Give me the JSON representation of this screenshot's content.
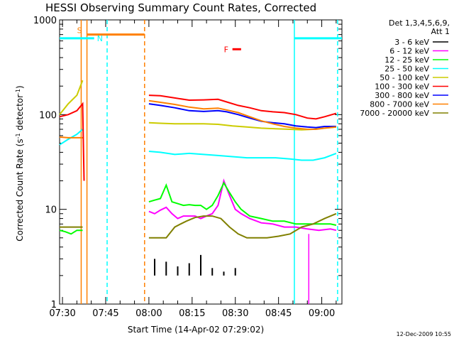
{
  "chart_data": {
    "type": "line",
    "title": "HESSI Observing Summary Count Rates, Corrected",
    "xlabel": "Start Time (14-Apr-02 07:29:02)",
    "ylabel_main": "Corrected Count Rate (s",
    "ylabel_exp1": "-1",
    "ylabel_mid": " detector",
    "ylabel_exp2": "-1",
    "ylabel_end": ")",
    "y_scale": "log",
    "ylim": [
      1,
      1000
    ],
    "xlim_minutes": [
      0,
      98
    ],
    "x_ticks": [
      {
        "m": 1,
        "label": "07:30"
      },
      {
        "m": 16,
        "label": "07:45"
      },
      {
        "m": 31,
        "label": "08:00"
      },
      {
        "m": 46,
        "label": "08:15"
      },
      {
        "m": 61,
        "label": "08:30"
      },
      {
        "m": 76,
        "label": "08:45"
      },
      {
        "m": 91,
        "label": "09:00"
      }
    ],
    "y_ticks": [
      {
        "v": 1,
        "label": "1"
      },
      {
        "v": 10,
        "label": "10"
      },
      {
        "v": 100,
        "label": "100"
      },
      {
        "v": 1000,
        "label": "1000"
      }
    ],
    "timestamp": "12-Dec-2009 10:55",
    "legend_header": [
      "Det 1,3,4,5,6,9,",
      "Att 1"
    ],
    "legend_placement": "right",
    "series": [
      {
        "name": "3 - 6 keV",
        "color": "#000000",
        "values": [
          [
            31,
            2
          ],
          [
            33,
            3
          ],
          [
            35,
            2
          ],
          [
            37,
            2.8
          ],
          [
            39,
            2
          ],
          [
            41,
            2.5
          ],
          [
            43,
            2
          ],
          [
            45,
            2.7
          ],
          [
            47,
            2
          ],
          [
            49,
            3.3
          ],
          [
            51,
            2
          ],
          [
            53,
            2.4
          ],
          [
            55,
            2
          ],
          [
            57,
            2.2
          ],
          [
            59,
            2
          ],
          [
            61,
            2.4
          ],
          [
            63,
            2
          ]
        ]
      },
      {
        "name": "6 - 12 keV",
        "color": "#ff00ff",
        "values": [
          [
            31,
            9.5
          ],
          [
            33,
            9
          ],
          [
            35,
            9.8
          ],
          [
            37,
            10.5
          ],
          [
            39,
            9
          ],
          [
            41,
            8
          ],
          [
            43,
            8.5
          ],
          [
            45,
            8.5
          ],
          [
            47,
            8.5
          ],
          [
            49,
            8
          ],
          [
            51,
            8.5
          ],
          [
            53,
            9
          ],
          [
            55,
            11
          ],
          [
            57,
            20
          ],
          [
            59,
            14
          ],
          [
            61,
            10
          ],
          [
            63,
            9
          ],
          [
            66,
            8
          ],
          [
            70,
            7.2
          ],
          [
            74,
            7
          ],
          [
            78,
            6.5
          ],
          [
            82,
            6.5
          ],
          [
            86,
            6.2
          ],
          [
            90,
            6
          ],
          [
            94,
            6.2
          ],
          [
            96,
            6
          ]
        ]
      },
      {
        "name": "12 - 25 keV",
        "color": "#00ff00",
        "values": [
          [
            0,
            6
          ],
          [
            2,
            5.8
          ],
          [
            4,
            5.5
          ],
          [
            6,
            6
          ],
          [
            8,
            6
          ],
          [
            31,
            12
          ],
          [
            33,
            12.5
          ],
          [
            35,
            13
          ],
          [
            37,
            18
          ],
          [
            39,
            12
          ],
          [
            41,
            11.5
          ],
          [
            43,
            11
          ],
          [
            45,
            11.2
          ],
          [
            47,
            11
          ],
          [
            49,
            11
          ],
          [
            51,
            10
          ],
          [
            53,
            11
          ],
          [
            55,
            14
          ],
          [
            57,
            19
          ],
          [
            59,
            15
          ],
          [
            61,
            12
          ],
          [
            63,
            10
          ],
          [
            66,
            8.5
          ],
          [
            70,
            8
          ],
          [
            74,
            7.5
          ],
          [
            78,
            7.5
          ],
          [
            82,
            7
          ],
          [
            86,
            7
          ],
          [
            90,
            7
          ],
          [
            94,
            7
          ],
          [
            96,
            6.8
          ]
        ]
      },
      {
        "name": "25 - 50 keV",
        "color": "#00ffff",
        "values": [
          [
            0,
            48
          ],
          [
            3,
            55
          ],
          [
            6,
            62
          ],
          [
            8,
            70
          ],
          [
            31,
            41
          ],
          [
            35,
            40
          ],
          [
            40,
            38
          ],
          [
            45,
            39
          ],
          [
            50,
            38
          ],
          [
            55,
            37
          ],
          [
            60,
            36
          ],
          [
            65,
            35
          ],
          [
            70,
            35
          ],
          [
            75,
            35
          ],
          [
            80,
            34
          ],
          [
            84,
            33
          ],
          [
            88,
            33
          ],
          [
            92,
            35
          ],
          [
            96,
            39
          ]
        ]
      },
      {
        "name": "50 - 100 keV",
        "color": "#cccc00",
        "values": [
          [
            0,
            100
          ],
          [
            3,
            130
          ],
          [
            6,
            160
          ],
          [
            8,
            230
          ],
          [
            31,
            82
          ],
          [
            35,
            81
          ],
          [
            40,
            80
          ],
          [
            45,
            80
          ],
          [
            50,
            80
          ],
          [
            55,
            79
          ],
          [
            60,
            76
          ],
          [
            65,
            74
          ],
          [
            70,
            72
          ],
          [
            75,
            71
          ],
          [
            80,
            70
          ],
          [
            84,
            69
          ],
          [
            88,
            70
          ],
          [
            92,
            72
          ],
          [
            96,
            74
          ]
        ]
      },
      {
        "name": "100 - 300 keV",
        "color": "#ff0000",
        "values": [
          [
            0,
            95
          ],
          [
            3,
            100
          ],
          [
            6,
            110
          ],
          [
            8,
            130
          ],
          [
            8.5,
            20
          ],
          [
            31,
            160
          ],
          [
            35,
            158
          ],
          [
            40,
            150
          ],
          [
            45,
            142
          ],
          [
            50,
            143
          ],
          [
            55,
            145
          ],
          [
            58,
            136
          ],
          [
            62,
            125
          ],
          [
            66,
            118
          ],
          [
            70,
            110
          ],
          [
            74,
            107
          ],
          [
            78,
            105
          ],
          [
            82,
            100
          ],
          [
            86,
            92
          ],
          [
            89,
            90
          ],
          [
            92,
            95
          ],
          [
            96,
            103
          ]
        ]
      },
      {
        "name": "300 - 800 keV",
        "color": "#0000ff",
        "values": [
          [
            31,
            130
          ],
          [
            35,
            125
          ],
          [
            40,
            118
          ],
          [
            45,
            110
          ],
          [
            50,
            108
          ],
          [
            55,
            110
          ],
          [
            58,
            107
          ],
          [
            62,
            100
          ],
          [
            66,
            92
          ],
          [
            70,
            85
          ],
          [
            74,
            82
          ],
          [
            78,
            80
          ],
          [
            82,
            76
          ],
          [
            86,
            74
          ],
          [
            89,
            73
          ],
          [
            92,
            75
          ],
          [
            96,
            75
          ]
        ]
      },
      {
        "name": "800 - 7000 keV",
        "color": "#ff8000",
        "values": [
          [
            0,
            58
          ],
          [
            3,
            57
          ],
          [
            6,
            57
          ],
          [
            8,
            57
          ],
          [
            31,
            140
          ],
          [
            35,
            135
          ],
          [
            40,
            128
          ],
          [
            45,
            120
          ],
          [
            50,
            115
          ],
          [
            55,
            117
          ],
          [
            58,
            112
          ],
          [
            62,
            105
          ],
          [
            66,
            95
          ],
          [
            70,
            86
          ],
          [
            74,
            80
          ],
          [
            78,
            75
          ],
          [
            82,
            72
          ],
          [
            86,
            70
          ],
          [
            89,
            70
          ],
          [
            92,
            72
          ],
          [
            96,
            74
          ]
        ]
      },
      {
        "name": "7000 - 20000 keV",
        "color": "#808000",
        "values": [
          [
            0,
            6.5
          ],
          [
            2,
            6.5
          ],
          [
            4,
            6.5
          ],
          [
            6,
            6.5
          ],
          [
            8,
            6.5
          ],
          [
            31,
            5
          ],
          [
            34,
            5
          ],
          [
            37,
            5
          ],
          [
            40,
            6.5
          ],
          [
            42,
            7
          ],
          [
            44,
            7.5
          ],
          [
            47,
            8.2
          ],
          [
            50,
            8.5
          ],
          [
            53,
            8.5
          ],
          [
            56,
            8
          ],
          [
            59,
            6.5
          ],
          [
            62,
            5.5
          ],
          [
            65,
            5
          ],
          [
            68,
            5
          ],
          [
            72,
            5
          ],
          [
            76,
            5.2
          ],
          [
            80,
            5.5
          ],
          [
            84,
            6.5
          ],
          [
            88,
            7
          ],
          [
            92,
            8
          ],
          [
            96,
            9
          ]
        ]
      }
    ],
    "flags": [
      {
        "label": "S",
        "color": "#ff8000",
        "m_start": 9.5,
        "m_end": 29.5,
        "value": 700
      },
      {
        "label": "N",
        "color": "#00ffff",
        "m_start": 0,
        "m_end": 12,
        "value": 640
      },
      {
        "label": "",
        "color": "#00ffff",
        "m_start": 81.5,
        "m_end": 98,
        "value": 640
      },
      {
        "label": "F",
        "color": "#ff0000",
        "m_start": 60,
        "m_end": 63,
        "value": 490
      }
    ],
    "vlines": [
      {
        "m": 7.5,
        "color": "#ff8000",
        "dash": false
      },
      {
        "m": 9.5,
        "color": "#ff8000",
        "dash": false
      },
      {
        "m": 16.5,
        "color": "#00ffff",
        "dash": true
      },
      {
        "m": 29.5,
        "color": "#ff8000",
        "dash": true
      },
      {
        "m": 81.5,
        "color": "#00ffff",
        "dash": false
      },
      {
        "m": 96.5,
        "color": "#00ffff",
        "dash": true
      },
      {
        "m": 86.5,
        "color": "#ff00ff",
        "dash": false
      }
    ]
  }
}
